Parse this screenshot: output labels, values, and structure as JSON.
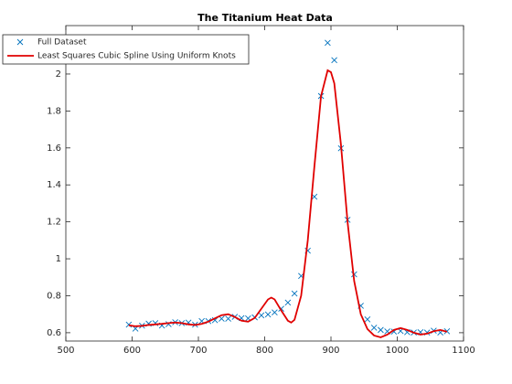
{
  "chart_data": {
    "type": "line",
    "title": "The Titanium Heat Data",
    "xlim": [
      500,
      1100
    ],
    "ylim": [
      0.555,
      2.262
    ],
    "xticks": [
      500,
      600,
      700,
      800,
      900,
      1000,
      1100
    ],
    "yticks": [
      0.6,
      0.8,
      1,
      1.2,
      1.4,
      1.6,
      1.8,
      2
    ],
    "legend": "upper left",
    "series": [
      {
        "name": "Full Dataset",
        "color": "#0072bd",
        "marker": "x",
        "line": false,
        "x": [
          595,
          605,
          615,
          625,
          635,
          645,
          655,
          665,
          675,
          685,
          695,
          705,
          715,
          725,
          735,
          745,
          755,
          765,
          775,
          785,
          795,
          805,
          815,
          825,
          835,
          845,
          855,
          865,
          875,
          885,
          895,
          905,
          915,
          925,
          935,
          945,
          955,
          965,
          975,
          985,
          995,
          1005,
          1015,
          1025,
          1035,
          1045,
          1055,
          1065,
          1075
        ],
        "values": [
          0.644,
          0.622,
          0.638,
          0.649,
          0.652,
          0.639,
          0.646,
          0.657,
          0.652,
          0.655,
          0.644,
          0.663,
          0.663,
          0.668,
          0.676,
          0.676,
          0.686,
          0.679,
          0.678,
          0.683,
          0.694,
          0.699,
          0.71,
          0.73,
          0.763,
          0.812,
          0.907,
          1.044,
          1.336,
          1.881,
          2.169,
          2.075,
          1.598,
          1.211,
          0.916,
          0.746,
          0.672,
          0.627,
          0.615,
          0.607,
          0.606,
          0.609,
          0.603,
          0.601,
          0.603,
          0.601,
          0.611,
          0.601,
          0.608
        ]
      },
      {
        "name": "Least Squares Cubic Spline Using Uniform Knots",
        "color": "#e00000",
        "marker": null,
        "line": true,
        "x": [
          595,
          605,
          615,
          625,
          635,
          645,
          655,
          665,
          675,
          685,
          695,
          705,
          715,
          725,
          735,
          745,
          755,
          765,
          775,
          785,
          795,
          805,
          810,
          815,
          825,
          835,
          840,
          845,
          855,
          865,
          875,
          885,
          895,
          900,
          905,
          915,
          925,
          935,
          945,
          955,
          965,
          975,
          985,
          995,
          1005,
          1015,
          1025,
          1035,
          1045,
          1055,
          1065,
          1075
        ],
        "values": [
          0.64,
          0.635,
          0.637,
          0.642,
          0.645,
          0.648,
          0.652,
          0.655,
          0.652,
          0.645,
          0.642,
          0.648,
          0.66,
          0.678,
          0.695,
          0.7,
          0.685,
          0.665,
          0.66,
          0.68,
          0.73,
          0.78,
          0.79,
          0.78,
          0.72,
          0.665,
          0.655,
          0.67,
          0.8,
          1.1,
          1.5,
          1.88,
          2.02,
          2.01,
          1.95,
          1.62,
          1.2,
          0.88,
          0.7,
          0.62,
          0.585,
          0.575,
          0.59,
          0.615,
          0.625,
          0.615,
          0.6,
          0.59,
          0.595,
          0.608,
          0.615,
          0.605
        ]
      }
    ]
  }
}
